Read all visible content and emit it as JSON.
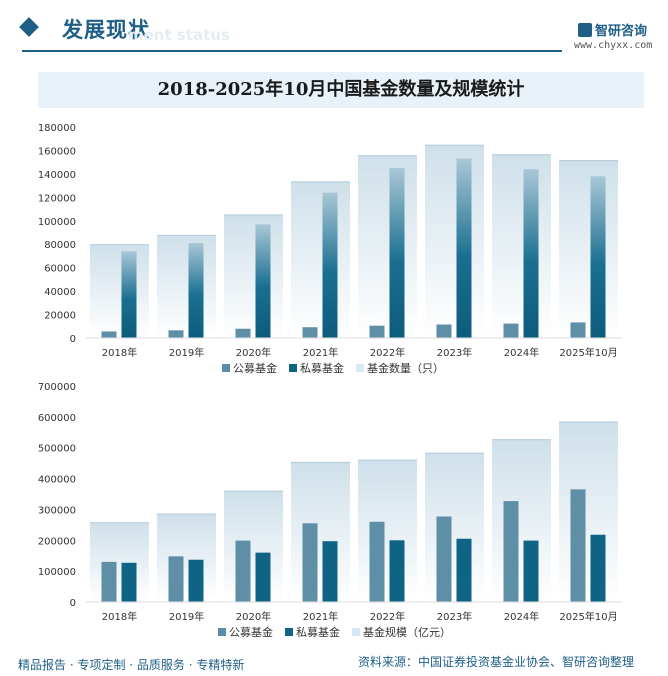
{
  "header": {
    "section_title": "发展现状",
    "section_subtitle": "ment status",
    "brand_name": "智研咨询",
    "brand_url": "www.chyxx.com"
  },
  "footer": {
    "left_text": "精品报告 · 专项定制 · 品质服务 · 专精特新",
    "source": "资料来源：中国证券投资基金业协会、智研咨询整理"
  },
  "colors": {
    "public": "#5e8fa6",
    "private": "#0f6384",
    "total_top": "#cfe0ea",
    "total_bottom": "#ffffff",
    "accent": "#1f5f86"
  },
  "chart_data": [
    {
      "type": "bar",
      "title": "2018-2025年10月中国基金数量及规模统计",
      "categories": [
        "2018年",
        "2019年",
        "2020年",
        "2021年",
        "2022年",
        "2023年",
        "2024年",
        "2025年10月"
      ],
      "series": [
        {
          "name": "公募基金",
          "values": [
            5600,
            6500,
            7900,
            9200,
            10500,
            11500,
            12300,
            13300
          ]
        },
        {
          "name": "私募基金",
          "values": [
            74000,
            81000,
            97000,
            124000,
            145000,
            153000,
            144000,
            138000
          ]
        },
        {
          "name": "基金数量（只）",
          "values": [
            79600,
            87500,
            104900,
            133200,
            155500,
            164500,
            156300,
            151300
          ]
        }
      ],
      "yticks": [
        "0",
        "20000",
        "40000",
        "60000",
        "80000",
        "100000",
        "120000",
        "140000",
        "160000",
        "180000"
      ],
      "ylim": [
        0,
        180000
      ]
    },
    {
      "type": "bar",
      "categories": [
        "2018年",
        "2019年",
        "2020年",
        "2021年",
        "2022年",
        "2023年",
        "2024年",
        "2025年10月"
      ],
      "series": [
        {
          "name": "公募基金",
          "values": [
            130000,
            148000,
            199000,
            255000,
            260000,
            277000,
            327000,
            365000
          ]
        },
        {
          "name": "私募基金",
          "values": [
            127000,
            137000,
            160000,
            197000,
            200000,
            205000,
            199000,
            218000
          ]
        },
        {
          "name": "基金规模（亿元）",
          "values": [
            257000,
            285000,
            359000,
            452000,
            460000,
            482000,
            526000,
            583000
          ]
        }
      ],
      "yticks": [
        "0",
        "100000",
        "200000",
        "300000",
        "400000",
        "500000",
        "600000",
        "700000"
      ],
      "ylim": [
        0,
        700000
      ]
    }
  ]
}
